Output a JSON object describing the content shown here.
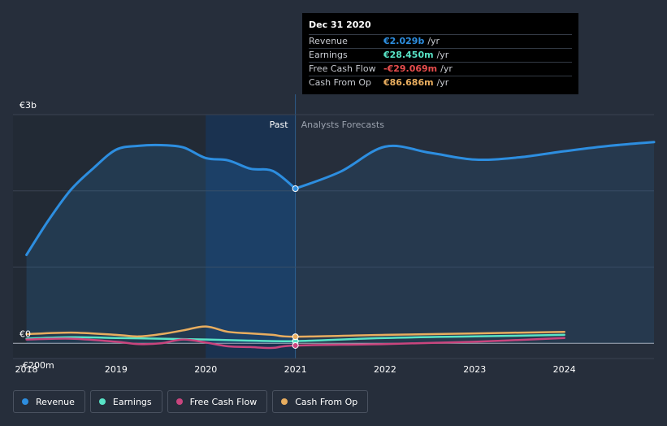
{
  "chart_data": {
    "type": "line",
    "title": "",
    "x_ticks": [
      "2018",
      "2019",
      "2020",
      "2021",
      "2022",
      "2023",
      "2024"
    ],
    "y_ticks": [
      {
        "value": 3000,
        "label": "€3b"
      },
      {
        "value": 0,
        "label": "€0"
      },
      {
        "value": -200,
        "label": "-€200m"
      }
    ],
    "ylim": [
      -200,
      3000
    ],
    "xlim": [
      2017.85,
      2025.0
    ],
    "divider_x": 2021.0,
    "past_label": "Past",
    "forecast_label": "Analysts Forecasts",
    "series": [
      {
        "name": "Revenue",
        "color": "#2d8ee0",
        "area": true,
        "x": [
          2018.0,
          2018.25,
          2018.5,
          2018.75,
          2019.0,
          2019.25,
          2019.5,
          2019.75,
          2020.0,
          2020.25,
          2020.5,
          2020.75,
          2021.0
        ],
        "values": [
          1160,
          1620,
          2020,
          2300,
          2540,
          2590,
          2600,
          2570,
          2430,
          2400,
          2290,
          2260,
          2029
        ]
      },
      {
        "name": "Revenue forecast",
        "color": "#2d8ee0",
        "area": true,
        "forecast": true,
        "x": [
          2021.0,
          2021.5,
          2022.0,
          2022.5,
          2023.0,
          2023.5,
          2024.0,
          2024.5,
          2025.0
        ],
        "values": [
          2029,
          2250,
          2580,
          2500,
          2410,
          2440,
          2520,
          2590,
          2640
        ]
      },
      {
        "name": "Earnings",
        "color": "#58e3c6",
        "x": [
          2018.0,
          2018.5,
          2019.0,
          2019.5,
          2020.0,
          2020.5,
          2021.0,
          2022.0,
          2023.0,
          2024.0
        ],
        "values": [
          60,
          80,
          70,
          60,
          50,
          35,
          28.45,
          70,
          90,
          110
        ]
      },
      {
        "name": "Free Cash Flow",
        "color": "#c9457e",
        "x": [
          2018.0,
          2018.5,
          2019.0,
          2019.25,
          2019.5,
          2019.75,
          2020.0,
          2020.25,
          2020.5,
          2020.75,
          2021.0,
          2022.0,
          2023.0,
          2024.0
        ],
        "values": [
          50,
          60,
          20,
          -10,
          0,
          50,
          10,
          -40,
          -50,
          -60,
          -29.069,
          -10,
          20,
          70
        ]
      },
      {
        "name": "Cash From Op",
        "color": "#e8ad5f",
        "x": [
          2018.0,
          2018.5,
          2019.0,
          2019.25,
          2019.5,
          2019.75,
          2020.0,
          2020.25,
          2020.5,
          2020.75,
          2021.0,
          2022.0,
          2023.0,
          2024.0
        ],
        "values": [
          120,
          140,
          110,
          90,
          120,
          170,
          220,
          150,
          130,
          110,
          86.686,
          110,
          130,
          150
        ]
      }
    ],
    "highlight": {
      "x": 2021.0,
      "points": [
        {
          "series": "Revenue",
          "value": 2029
        },
        {
          "series": "Earnings",
          "value": 28.45
        },
        {
          "series": "Free Cash Flow",
          "value": -29.069
        },
        {
          "series": "Cash From Op",
          "value": 86.686
        }
      ]
    }
  },
  "tooltip": {
    "date": "Dec 31 2020",
    "rows": [
      {
        "label": "Revenue",
        "value": "€2.029b",
        "unit": "/yr",
        "color": "#2d8ee0"
      },
      {
        "label": "Earnings",
        "value": "€28.450m",
        "unit": "/yr",
        "color": "#58e3c6"
      },
      {
        "label": "Free Cash Flow",
        "value": "-€29.069m",
        "unit": "/yr",
        "color": "#e84d4d"
      },
      {
        "label": "Cash From Op",
        "value": "€86.686m",
        "unit": "/yr",
        "color": "#e8ad5f"
      }
    ]
  },
  "legend": [
    {
      "label": "Revenue",
      "color": "#2d8ee0"
    },
    {
      "label": "Earnings",
      "color": "#58e3c6"
    },
    {
      "label": "Free Cash Flow",
      "color": "#c9457e"
    },
    {
      "label": "Cash From Op",
      "color": "#e8ad5f"
    }
  ]
}
